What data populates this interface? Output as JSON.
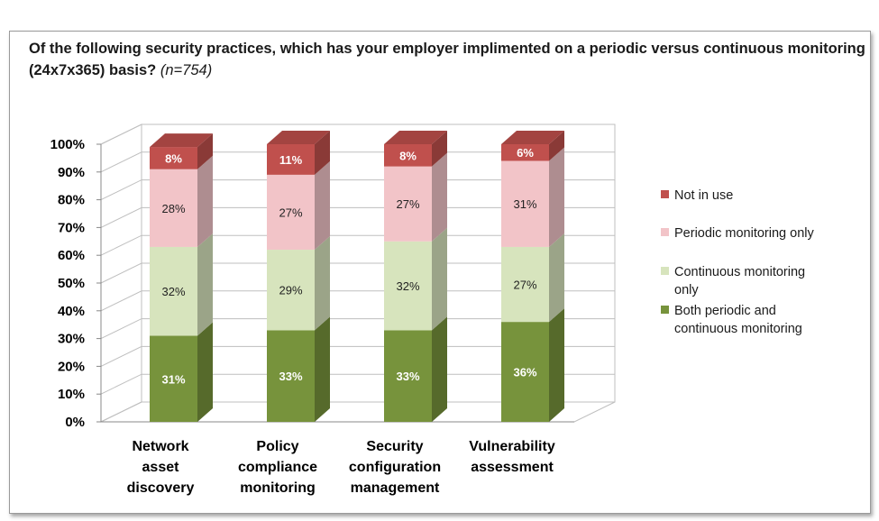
{
  "chart_data": {
    "type": "bar",
    "stacked": true,
    "three_d": true,
    "title": "Of the following security practices, which has your employer implimented on a periodic versus continuous monitoring (24x7x365) basis?",
    "title_note": "(n=754)",
    "categories": [
      [
        "Network",
        "asset",
        "discovery"
      ],
      [
        "Policy",
        "compliance",
        "monitoring"
      ],
      [
        "Security",
        "configuration",
        "management"
      ],
      [
        "Vulnerability",
        "assessment"
      ]
    ],
    "series": [
      {
        "name": "Both periodic and continuous monitoring",
        "legend_lines": [
          "Both periodic and",
          "continuous monitoring"
        ],
        "values": [
          31,
          33,
          33,
          36
        ],
        "labels": [
          "31%",
          "33%",
          "33%",
          "36%"
        ],
        "color": "#77933c"
      },
      {
        "name": "Continuous monitoring only",
        "legend_lines": [
          "Continuous monitoring",
          "only"
        ],
        "values": [
          32,
          29,
          32,
          27
        ],
        "labels": [
          "32%",
          "29%",
          "32%",
          "27%"
        ],
        "color": "#d7e4bd"
      },
      {
        "name": "Periodic monitoring only",
        "legend_lines": [
          "Periodic monitoring only"
        ],
        "values": [
          28,
          27,
          27,
          31
        ],
        "labels": [
          "28%",
          "27%",
          "27%",
          "31%"
        ],
        "color": "#f2c4c8"
      },
      {
        "name": "Not in use",
        "legend_lines": [
          "Not in use"
        ],
        "values": [
          8,
          11,
          8,
          6
        ],
        "labels": [
          "8%",
          "11%",
          "8%",
          "6%"
        ],
        "color": "#c0504d"
      }
    ],
    "ylim": [
      0,
      100
    ],
    "yticks": [
      "0%",
      "10%",
      "20%",
      "30%",
      "40%",
      "50%",
      "60%",
      "70%",
      "80%",
      "90%",
      "100%"
    ],
    "grid": true,
    "legend_position": "right"
  }
}
